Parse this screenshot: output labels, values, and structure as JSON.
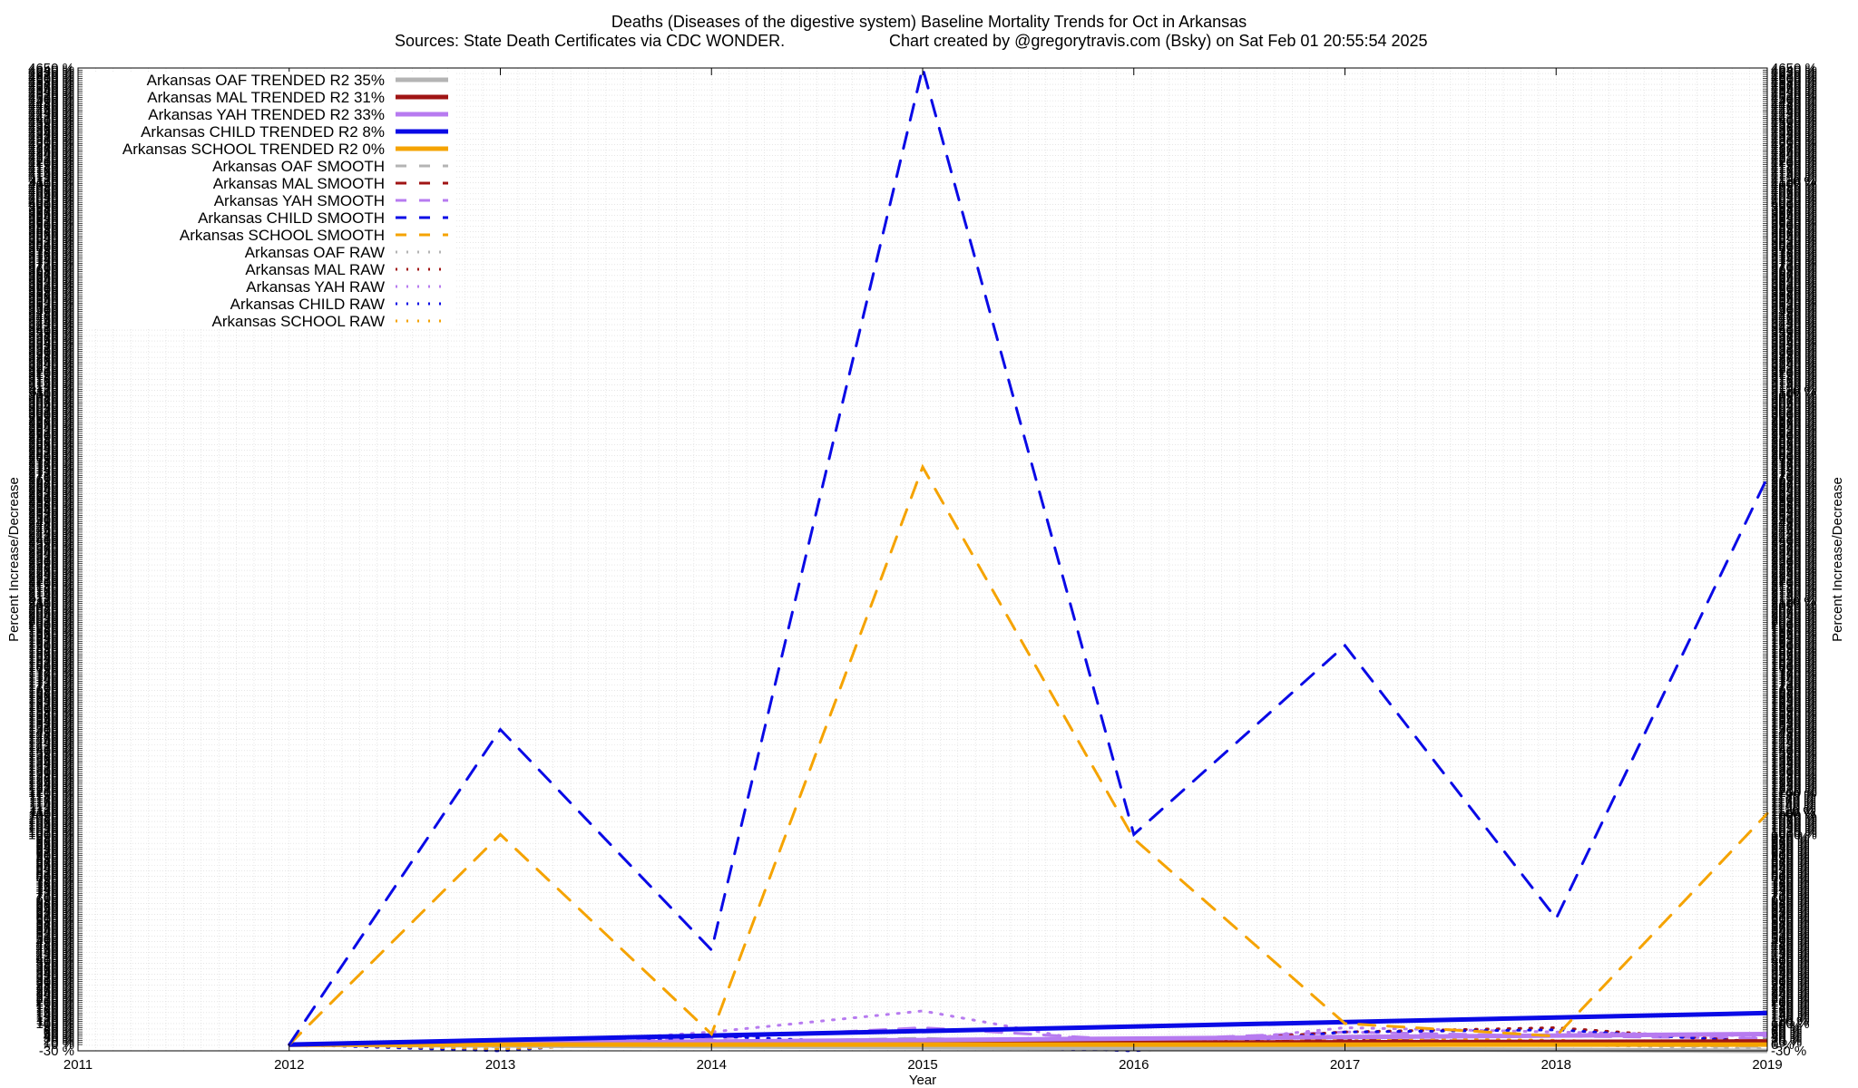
{
  "chart_data": {
    "type": "line",
    "title": "Deaths (Diseases of the digestive system)  Baseline Mortality Trends for Oct in Arkansas",
    "subtitle_left": "Sources: State Death Certificates via CDC WONDER.",
    "subtitle_right": "Chart created by @gregorytravis.com (Bsky) on Sat Feb 01 20:55:54 2025",
    "xlabel": "Year",
    "ylabel_left": "Percent Increase/Decrease",
    "ylabel_right": "Percent Increase/Decrease",
    "xlim": [
      2011,
      2019
    ],
    "ylim": [
      -30,
      4650
    ],
    "x_ticks": [
      "2011",
      "2012",
      "2013",
      "2014",
      "2015",
      "2016",
      "2017",
      "2018",
      "2019"
    ],
    "y_tick_bottom": "-30 %",
    "grid": true,
    "legend_position": "top-left",
    "series": [
      {
        "name": "Arkansas OAF TRENDED R2  35%",
        "color": "#b4b4b4",
        "style": "solid",
        "width": 5,
        "x": [
          2012,
          2019
        ],
        "y": [
          0,
          -30
        ]
      },
      {
        "name": "Arkansas MAL TRENDED R2  31%",
        "color": "#a01414",
        "style": "solid",
        "width": 5,
        "x": [
          2012,
          2019
        ],
        "y": [
          0,
          15
        ]
      },
      {
        "name": "Arkansas YAH TRENDED R2  33%",
        "color": "#b77bf0",
        "style": "solid",
        "width": 5,
        "x": [
          2012,
          2019
        ],
        "y": [
          0,
          50
        ]
      },
      {
        "name": "Arkansas CHILD TRENDED R2  8%",
        "color": "#0a0ae6",
        "style": "solid",
        "width": 5,
        "x": [
          2012,
          2019
        ],
        "y": [
          0,
          150
        ]
      },
      {
        "name": "Arkansas SCHOOL TRENDED R2  0%",
        "color": "#f5a300",
        "style": "solid",
        "width": 5,
        "x": [
          2012,
          2019
        ],
        "y": [
          0,
          0
        ]
      },
      {
        "name": "Arkansas OAF SMOOTH",
        "color": "#b4b4b4",
        "style": "dashed",
        "width": 3,
        "x": [
          2012,
          2013,
          2014,
          2015,
          2016,
          2017,
          2018,
          2019
        ],
        "y": [
          0,
          -10,
          10,
          30,
          0,
          10,
          0,
          -10
        ]
      },
      {
        "name": "Arkansas MAL SMOOTH",
        "color": "#a01414",
        "style": "dashed",
        "width": 3,
        "x": [
          2012,
          2013,
          2014,
          2015,
          2016,
          2017,
          2018,
          2019
        ],
        "y": [
          0,
          5,
          10,
          15,
          5,
          20,
          15,
          10
        ]
      },
      {
        "name": "Arkansas YAH SMOOTH",
        "color": "#b77bf0",
        "style": "dashed",
        "width": 3,
        "x": [
          2012,
          2013,
          2014,
          2015,
          2016,
          2017,
          2018,
          2019
        ],
        "y": [
          0,
          10,
          30,
          80,
          20,
          60,
          40,
          30
        ]
      },
      {
        "name": "Arkansas CHILD SMOOTH",
        "color": "#0a0ae6",
        "style": "dashed",
        "width": 3,
        "x": [
          2012,
          2013,
          2014,
          2015,
          2016,
          2017,
          2018,
          2019
        ],
        "y": [
          0,
          1500,
          450,
          4650,
          1000,
          1900,
          600,
          2700
        ]
      },
      {
        "name": "Arkansas SCHOOL SMOOTH",
        "color": "#f5a300",
        "style": "dashed",
        "width": 3,
        "x": [
          2012,
          2013,
          2014,
          2015,
          2016,
          2017,
          2018,
          2019
        ],
        "y": [
          0,
          1000,
          50,
          2750,
          980,
          100,
          40,
          1100
        ]
      },
      {
        "name": "Arkansas OAF RAW",
        "color": "#b4b4b4",
        "style": "dotted",
        "width": 3,
        "x": [
          2012,
          2013,
          2014,
          2015,
          2016,
          2017,
          2018,
          2019
        ],
        "y": [
          0,
          -20,
          20,
          10,
          -30,
          20,
          0,
          -20
        ]
      },
      {
        "name": "Arkansas MAL RAW",
        "color": "#a01414",
        "style": "dotted",
        "width": 3,
        "x": [
          2012,
          2013,
          2014,
          2015,
          2016,
          2017,
          2018,
          2019
        ],
        "y": [
          0,
          10,
          5,
          20,
          0,
          60,
          80,
          10
        ]
      },
      {
        "name": "Arkansas YAH RAW",
        "color": "#b77bf0",
        "style": "dotted",
        "width": 3,
        "x": [
          2012,
          2013,
          2014,
          2015,
          2016,
          2017,
          2018,
          2019
        ],
        "y": [
          0,
          -10,
          60,
          160,
          -20,
          80,
          60,
          40
        ]
      },
      {
        "name": "Arkansas CHILD RAW",
        "color": "#0a0ae6",
        "style": "dotted",
        "width": 3,
        "x": [
          2012,
          2013,
          2014,
          2015,
          2016,
          2017,
          2018,
          2019
        ],
        "y": [
          0,
          -30,
          40,
          0,
          -30,
          60,
          70,
          10
        ]
      },
      {
        "name": "Arkansas SCHOOL RAW",
        "color": "#f5a300",
        "style": "dotted",
        "width": 3,
        "x": [
          2012,
          2013,
          2014,
          2015,
          2016,
          2017,
          2018,
          2019
        ],
        "y": [
          0,
          -20,
          10,
          0,
          -20,
          30,
          20,
          0
        ]
      }
    ]
  }
}
